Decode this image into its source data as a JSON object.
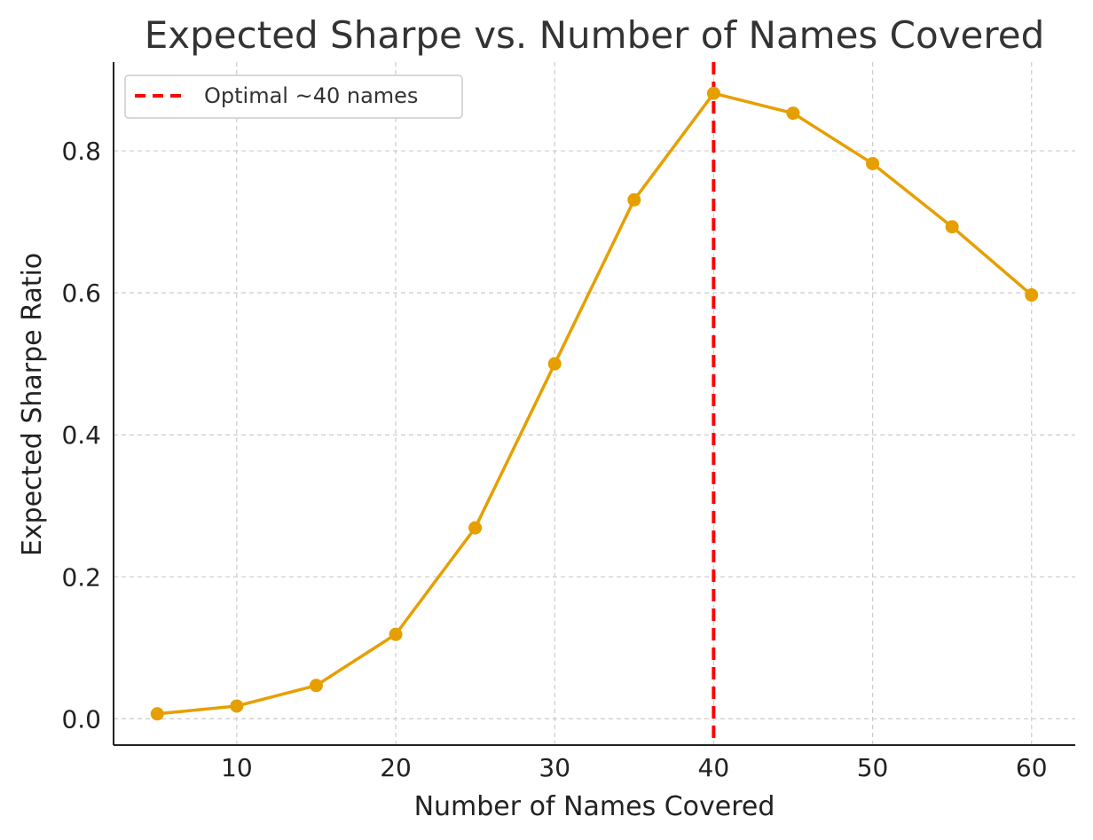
{
  "chart_data": {
    "type": "line",
    "title": "Expected Sharpe vs. Number of Names Covered",
    "xlabel": "Number of Names Covered",
    "ylabel": "Expected Sharpe Ratio",
    "x": [
      5,
      10,
      15,
      20,
      25,
      30,
      35,
      40,
      45,
      50,
      55,
      60
    ],
    "series": [
      {
        "values": [
          0.007,
          0.018,
          0.047,
          0.119,
          0.269,
          0.5,
          0.731,
          0.881,
          0.853,
          0.782,
          0.693,
          0.597
        ],
        "color": "#E69F00",
        "marker": "circle"
      }
    ],
    "xlim": [
      2.25,
      62.75
    ],
    "ylim": [
      -0.037,
      0.925
    ],
    "xticks": [
      10,
      20,
      30,
      40,
      50,
      60
    ],
    "xtick_labels": [
      "10",
      "20",
      "30",
      "40",
      "50",
      "60"
    ],
    "yticks": [
      0.0,
      0.2,
      0.4,
      0.6,
      0.8
    ],
    "ytick_labels": [
      "0.0",
      "0.2",
      "0.4",
      "0.6",
      "0.8"
    ],
    "grid": true,
    "grid_style": "dashed",
    "vline": {
      "x": 40,
      "label": "Optimal ~40 names",
      "color": "#FF0000",
      "style": "dashed"
    },
    "legend": {
      "placement": "top-left",
      "entries": [
        "Optimal ~40 names"
      ]
    }
  }
}
